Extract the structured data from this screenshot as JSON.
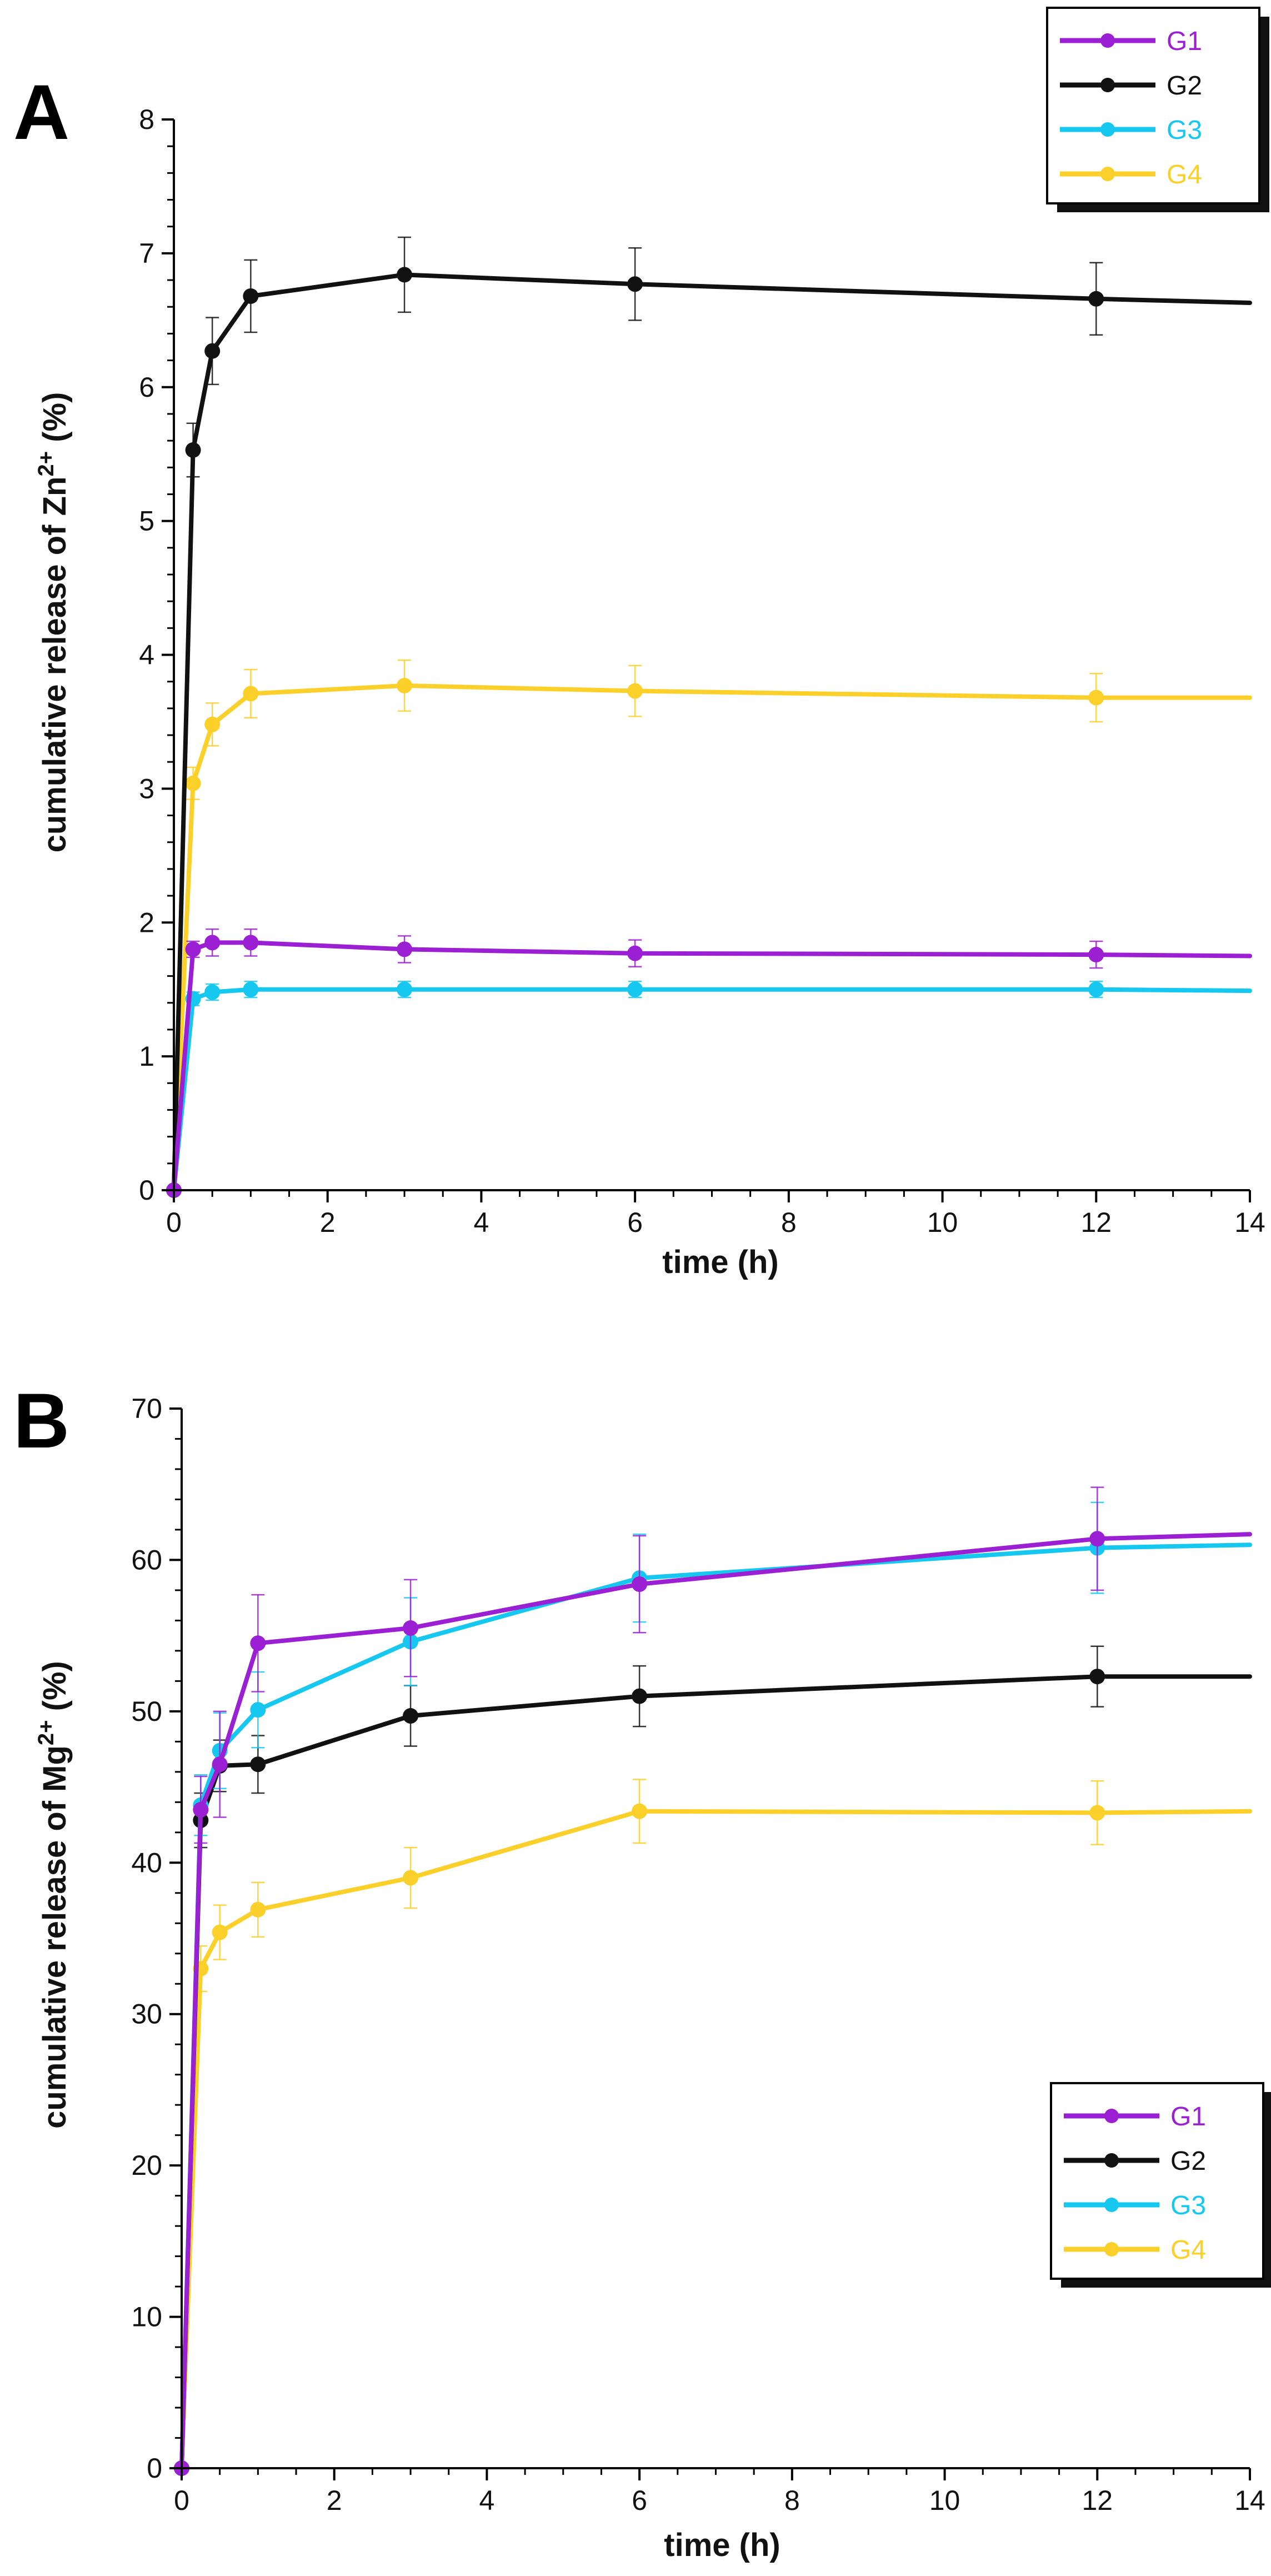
{
  "colors": {
    "G1": "#9b1fd3",
    "G2": "#111111",
    "G3": "#16c7f0",
    "G4": "#fcd02a"
  },
  "chart_data": [
    {
      "type": "line",
      "panel_label": "A",
      "title": "",
      "xlabel": "time (h)",
      "ylabel_prefix": "cumulative release of Zn",
      "ylabel_sup": "2+",
      "ylabel_suffix": " (%)",
      "xlim": [
        0,
        14
      ],
      "ylim": [
        0,
        8
      ],
      "x_ticks": [
        0,
        2,
        4,
        6,
        8,
        10,
        12,
        14
      ],
      "y_ticks": [
        0,
        1,
        2,
        3,
        4,
        5,
        6,
        7,
        8
      ],
      "grid": false,
      "legend_position": "top-right",
      "x": [
        0,
        0.25,
        0.5,
        1,
        3,
        6,
        12,
        14
      ],
      "series": [
        {
          "name": "G1",
          "values": [
            0,
            1.8,
            1.85,
            1.85,
            1.8,
            1.77,
            1.76,
            1.75
          ],
          "errors": [
            0,
            0.06,
            0.1,
            0.1,
            0.1,
            0.1,
            0.1,
            0
          ]
        },
        {
          "name": "G2",
          "values": [
            0,
            5.53,
            6.27,
            6.68,
            6.84,
            6.77,
            6.66,
            6.63
          ],
          "errors": [
            0,
            0.2,
            0.25,
            0.27,
            0.28,
            0.27,
            0.27,
            0
          ]
        },
        {
          "name": "G3",
          "values": [
            0,
            1.43,
            1.48,
            1.5,
            1.5,
            1.5,
            1.5,
            1.49
          ],
          "errors": [
            0,
            0.05,
            0.06,
            0.06,
            0.06,
            0.06,
            0.06,
            0
          ]
        },
        {
          "name": "G4",
          "values": [
            0,
            3.04,
            3.48,
            3.71,
            3.77,
            3.73,
            3.68,
            3.68
          ],
          "errors": [
            0,
            0.12,
            0.16,
            0.18,
            0.19,
            0.19,
            0.18,
            0
          ]
        }
      ]
    },
    {
      "type": "line",
      "panel_label": "B",
      "title": "",
      "xlabel": "time (h)",
      "ylabel_prefix": "cumulative release of Mg",
      "ylabel_sup": "2+",
      "ylabel_suffix": " (%)",
      "xlim": [
        0,
        14
      ],
      "ylim": [
        0,
        70
      ],
      "x_ticks": [
        0,
        2,
        4,
        6,
        8,
        10,
        12,
        14
      ],
      "y_ticks": [
        0,
        10,
        20,
        30,
        40,
        50,
        60,
        70
      ],
      "grid": false,
      "legend_position": "bottom-right",
      "x": [
        0,
        0.25,
        0.5,
        1,
        3,
        6,
        12,
        14
      ],
      "series": [
        {
          "name": "G1",
          "values": [
            0,
            43.5,
            46.5,
            54.5,
            55.5,
            58.4,
            61.4,
            61.7
          ],
          "errors": [
            0,
            2.2,
            3.5,
            3.2,
            3.2,
            3.2,
            3.4,
            0
          ]
        },
        {
          "name": "G2",
          "values": [
            0,
            42.8,
            46.4,
            46.5,
            49.7,
            51.0,
            52.3,
            52.3
          ],
          "errors": [
            0,
            1.8,
            1.7,
            1.9,
            2.0,
            2.0,
            2.0,
            0
          ]
        },
        {
          "name": "G3",
          "values": [
            0,
            43.8,
            47.4,
            50.1,
            54.6,
            58.8,
            60.8,
            61.0
          ],
          "errors": [
            0,
            2.0,
            2.5,
            2.5,
            2.9,
            2.9,
            3.0,
            0
          ]
        },
        {
          "name": "G4",
          "values": [
            0,
            33.0,
            35.4,
            36.9,
            39.0,
            43.4,
            43.3,
            43.4
          ],
          "errors": [
            0,
            1.5,
            1.8,
            1.8,
            2.0,
            2.1,
            2.1,
            0
          ]
        }
      ]
    }
  ]
}
